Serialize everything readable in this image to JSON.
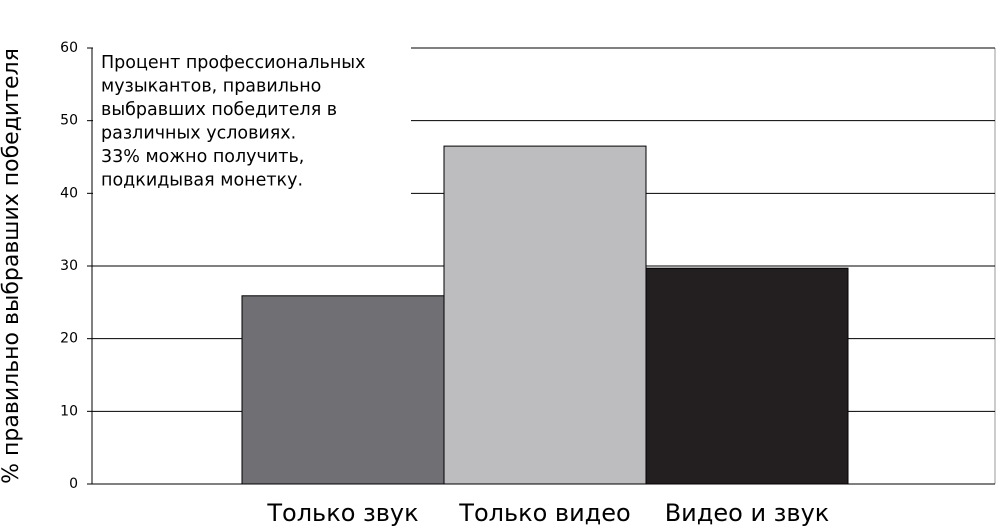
{
  "chart_data": {
    "type": "bar",
    "y_label": "% правильно выбравших победителя",
    "annotation": [
      "Процент профессиональных",
      "музыкантов, правильно",
      "выбравших победителя в",
      "различных условиях.",
      "33% можно получить,",
      "подкидывая монетку."
    ],
    "categories": [
      "Только звук",
      "Только видео",
      "Видео и звук"
    ],
    "values": [
      25.9,
      46.5,
      29.7
    ],
    "colors": [
      "#707074",
      "#bdbdbf",
      "#231f20"
    ],
    "ylim": [
      0,
      60
    ],
    "yticks": [
      0,
      10,
      20,
      30,
      40,
      50,
      60
    ],
    "grid": true
  }
}
